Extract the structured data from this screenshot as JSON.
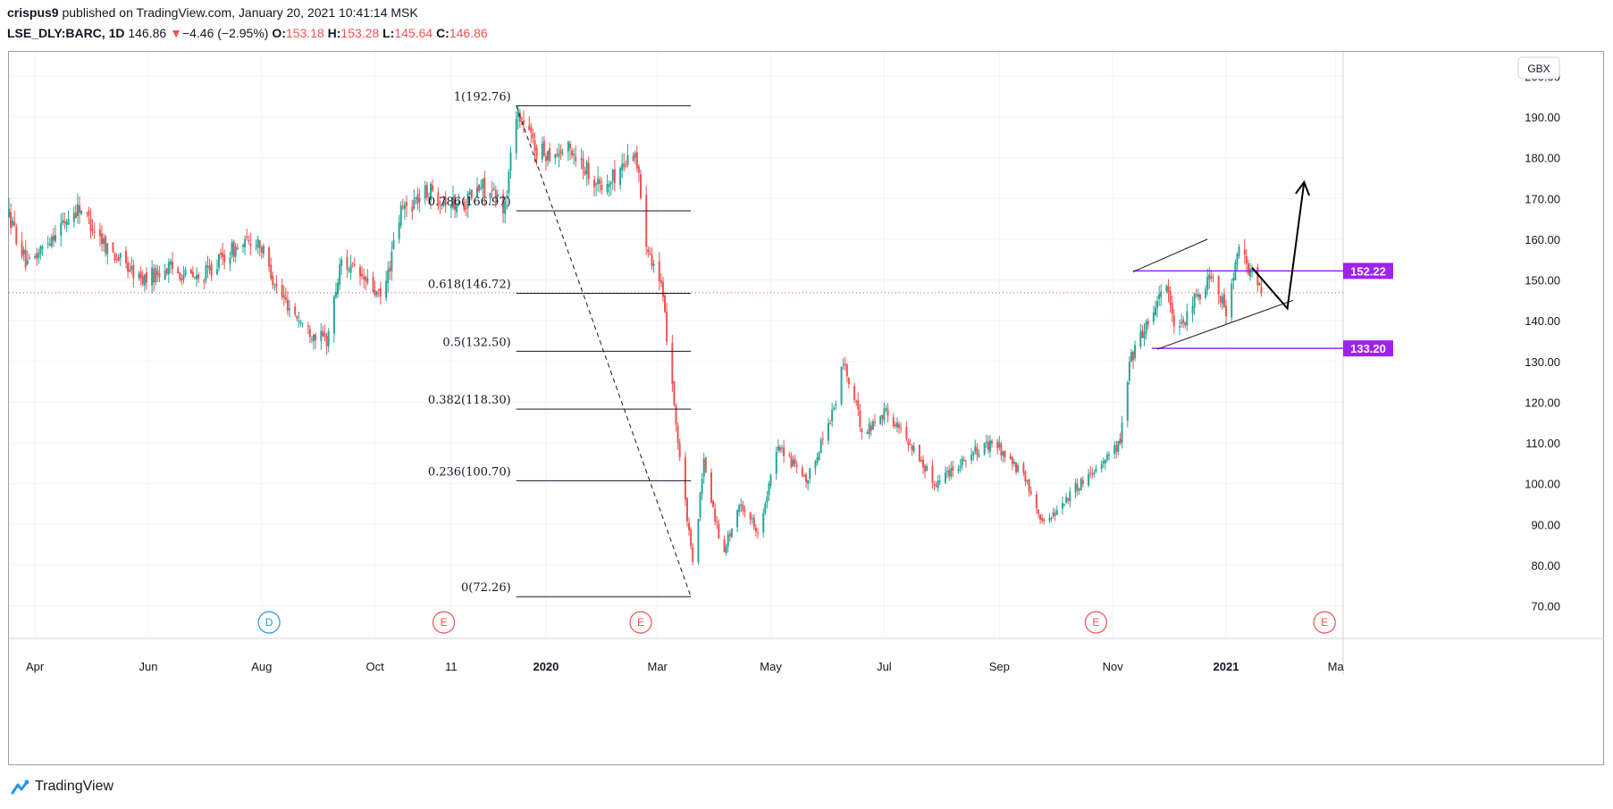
{
  "header": {
    "author": "crispus9",
    "published_text": "published on TradingView.com, January 20, 2021 10:41:14 MSK",
    "symbol": "LSE_DLY:BARC, 1D",
    "last": "146.86",
    "change_arrow": "▼",
    "change": "−4.46 (−2.95%)",
    "open_label": "O:",
    "open": "153.18",
    "high_label": "H:",
    "high": "153.28",
    "low_label": "L:",
    "low": "145.64",
    "close_label": "C:",
    "close": "146.86"
  },
  "footer": {
    "brand": "TradingView",
    "icon": "tradingview-cloud-icon"
  },
  "colors": {
    "up": "#26a69a",
    "down": "#ef5350",
    "level": "#a020f0",
    "fib": "#131722",
    "event_red": "#ef5350",
    "event_blue": "#2196f3",
    "last_price_line": "#ef5350"
  },
  "chart_data": {
    "type": "candlestick",
    "currency": "GBX",
    "ylim": [
      62,
      206
    ],
    "yticks": [
      70,
      80,
      90,
      100,
      110,
      120,
      130,
      140,
      150,
      160,
      170,
      180,
      190,
      200
    ],
    "ytick_labels": [
      "70.00",
      "80.00",
      "90.00",
      "100.00",
      "110.00",
      "120.00",
      "130.00",
      "140.00",
      "150.00",
      "160.00",
      "170.00",
      "180.00",
      "190.00",
      "200.00"
    ],
    "x_domain": [
      "2019-03-18",
      "2021-03-05"
    ],
    "xticks": [
      {
        "date": "2019-04-01",
        "label": "Apr",
        "bold": false
      },
      {
        "date": "2019-06-01",
        "label": "Jun",
        "bold": false
      },
      {
        "date": "2019-08-01",
        "label": "Aug",
        "bold": false
      },
      {
        "date": "2019-10-01",
        "label": "Oct",
        "bold": false
      },
      {
        "date": "2019-11-11",
        "label": "11",
        "bold": false
      },
      {
        "date": "2020-01-01",
        "label": "2020",
        "bold": true
      },
      {
        "date": "2020-03-01",
        "label": "Mar",
        "bold": false
      },
      {
        "date": "2020-05-01",
        "label": "May",
        "bold": false
      },
      {
        "date": "2020-07-01",
        "label": "Jul",
        "bold": false
      },
      {
        "date": "2020-09-01",
        "label": "Sep",
        "bold": false
      },
      {
        "date": "2020-11-01",
        "label": "Nov",
        "bold": false
      },
      {
        "date": "2021-01-01",
        "label": "2021",
        "bold": true
      },
      {
        "date": "2021-03-01",
        "label": "Ma",
        "bold": false
      }
    ],
    "price_path": [
      [
        "2019-03-18",
        166
      ],
      [
        "2019-03-28",
        153
      ],
      [
        "2019-04-10",
        161
      ],
      [
        "2019-04-25",
        168
      ],
      [
        "2019-05-10",
        158
      ],
      [
        "2019-05-28",
        150
      ],
      [
        "2019-06-12",
        153
      ],
      [
        "2019-06-28",
        150
      ],
      [
        "2019-07-15",
        157
      ],
      [
        "2019-07-30",
        160
      ],
      [
        "2019-08-10",
        147
      ],
      [
        "2019-08-25",
        138
      ],
      [
        "2019-09-05",
        135
      ],
      [
        "2019-09-13",
        155
      ],
      [
        "2019-09-25",
        150
      ],
      [
        "2019-10-05",
        145
      ],
      [
        "2019-10-15",
        167
      ],
      [
        "2019-10-30",
        172
      ],
      [
        "2019-11-15",
        168
      ],
      [
        "2019-11-28",
        173
      ],
      [
        "2019-12-10",
        168
      ],
      [
        "2019-12-16",
        192
      ],
      [
        "2019-12-28",
        181
      ],
      [
        "2020-01-15",
        182
      ],
      [
        "2020-02-01",
        172
      ],
      [
        "2020-02-18",
        182
      ],
      [
        "2020-02-24",
        160
      ],
      [
        "2020-03-03",
        148
      ],
      [
        "2020-03-09",
        125
      ],
      [
        "2020-03-12",
        110
      ],
      [
        "2020-03-20",
        80
      ],
      [
        "2020-03-26",
        105
      ],
      [
        "2020-04-05",
        83
      ],
      [
        "2020-04-15",
        95
      ],
      [
        "2020-04-25",
        88
      ],
      [
        "2020-05-05",
        110
      ],
      [
        "2020-05-20",
        100
      ],
      [
        "2020-06-05",
        120
      ],
      [
        "2020-06-09",
        130
      ],
      [
        "2020-06-20",
        112
      ],
      [
        "2020-07-01",
        118
      ],
      [
        "2020-07-15",
        110
      ],
      [
        "2020-07-28",
        100
      ],
      [
        "2020-08-15",
        107
      ],
      [
        "2020-08-30",
        110
      ],
      [
        "2020-09-15",
        101
      ],
      [
        "2020-09-25",
        90
      ],
      [
        "2020-10-10",
        98
      ],
      [
        "2020-10-25",
        105
      ],
      [
        "2020-11-05",
        110
      ],
      [
        "2020-11-10",
        130
      ],
      [
        "2020-11-20",
        140
      ],
      [
        "2020-11-30",
        150
      ],
      [
        "2020-12-05",
        135
      ],
      [
        "2020-12-15",
        145
      ],
      [
        "2020-12-25",
        152
      ],
      [
        "2021-01-01",
        142
      ],
      [
        "2021-01-08",
        157
      ],
      [
        "2021-01-20",
        147
      ]
    ],
    "last_price": 146.86,
    "fibonacci": {
      "start": {
        "date": "2019-12-16",
        "price": 192.76
      },
      "end": {
        "date": "2020-03-19",
        "price": 72.26
      },
      "levels": [
        {
          "ratio": "1",
          "price": 192.76,
          "label": "1(192.76)"
        },
        {
          "ratio": "0.786",
          "price": 166.97,
          "label": "0.786(166.97)"
        },
        {
          "ratio": "0.618",
          "price": 146.72,
          "label": "0.618(146.72)"
        },
        {
          "ratio": "0.5",
          "price": 132.5,
          "label": "0.5(132.50)"
        },
        {
          "ratio": "0.382",
          "price": 118.3,
          "label": "0.382(118.30)"
        },
        {
          "ratio": "0.236",
          "price": 100.7,
          "label": "0.236(100.70)"
        },
        {
          "ratio": "0",
          "price": 72.26,
          "label": "0(72.26)"
        }
      ]
    },
    "horizontal_levels": [
      {
        "price": 152.22,
        "label": "152.22",
        "from": "2020-11-12"
      },
      {
        "price": 133.2,
        "label": "133.20",
        "from": "2020-11-22"
      }
    ],
    "channel": {
      "upper": [
        [
          "2020-11-12",
          152
        ],
        [
          "2020-12-22",
          160
        ]
      ],
      "lower": [
        [
          "2020-11-25",
          133
        ],
        [
          "2021-02-06",
          145
        ]
      ]
    },
    "projection_arrow": [
      [
        "2021-01-15",
        153
      ],
      [
        "2021-02-03",
        143
      ],
      [
        "2021-02-12",
        174
      ]
    ],
    "event_markers": [
      {
        "date": "2019-08-05",
        "label": "D",
        "color": "#2196f3"
      },
      {
        "date": "2019-11-07",
        "label": "E",
        "color": "#ef5350"
      },
      {
        "date": "2020-02-21",
        "label": "E",
        "color": "#ef5350"
      },
      {
        "date": "2020-10-23",
        "label": "E",
        "color": "#ef5350"
      },
      {
        "date": "2021-02-23",
        "label": "E",
        "color": "#ef5350"
      }
    ]
  }
}
